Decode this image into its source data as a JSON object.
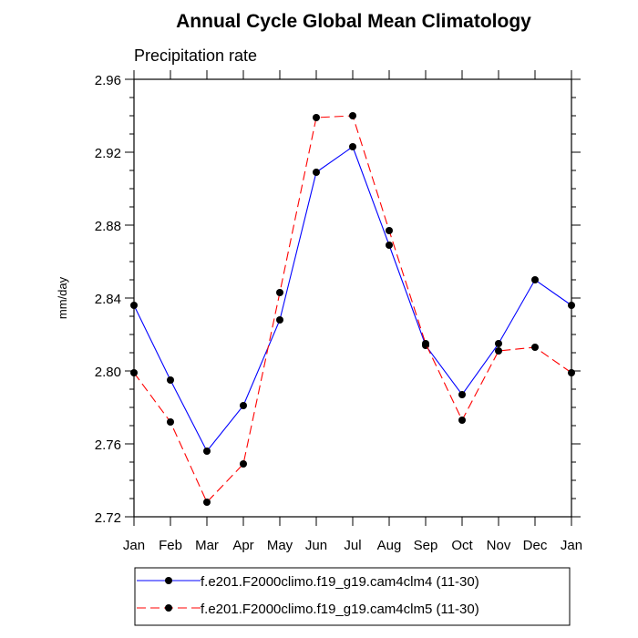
{
  "chart_data": {
    "type": "line",
    "title": "Annual Cycle Global Mean Climatology",
    "subtitle": "Precipitation rate",
    "xlabel": "",
    "ylabel": "mm/day",
    "ylim": [
      2.72,
      2.96
    ],
    "yticks": [
      "2.72",
      "2.76",
      "2.80",
      "2.84",
      "2.88",
      "2.92",
      "2.96"
    ],
    "categories": [
      "Jan",
      "Feb",
      "Mar",
      "Apr",
      "May",
      "Jun",
      "Jul",
      "Aug",
      "Sep",
      "Oct",
      "Nov",
      "Dec",
      "Jan"
    ],
    "legend_position": "bottom",
    "series": [
      {
        "name": "f.e201.F2000climo.f19_g19.cam4clm4 (11-30)",
        "color": "#0000ff",
        "dash": "solid",
        "values": [
          2.836,
          2.795,
          2.756,
          2.781,
          2.828,
          2.909,
          2.923,
          2.869,
          2.814,
          2.787,
          2.815,
          2.85,
          2.836
        ]
      },
      {
        "name": "f.e201.F2000climo.f19_g19.cam4clm5 (11-30)",
        "color": "#ff0000",
        "dash": "dashed",
        "values": [
          2.799,
          2.772,
          2.728,
          2.749,
          2.843,
          2.939,
          2.94,
          2.877,
          2.815,
          2.773,
          2.811,
          2.813,
          2.799
        ]
      }
    ]
  }
}
